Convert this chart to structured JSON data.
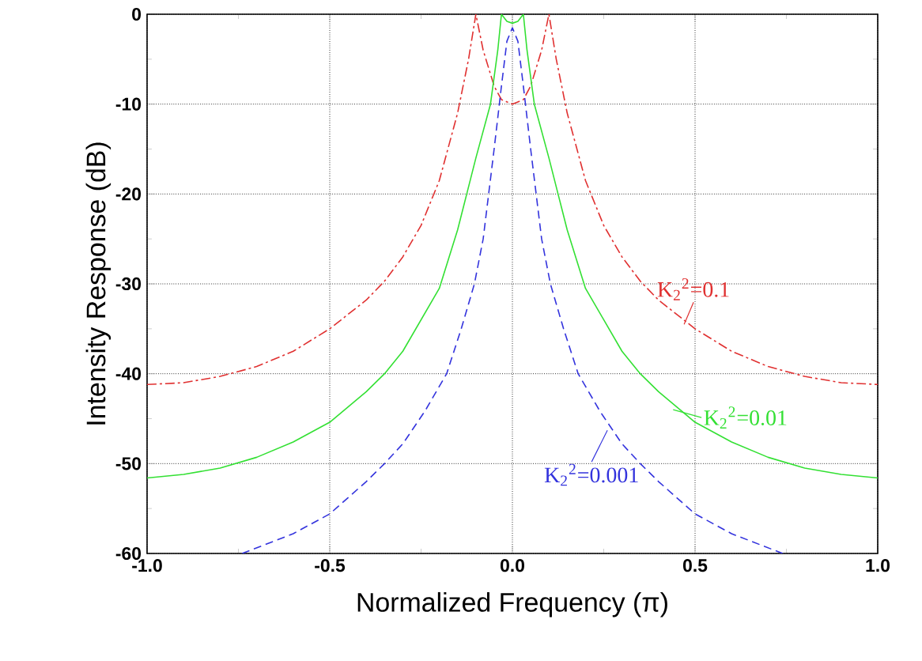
{
  "chart_data": {
    "type": "line",
    "xlabel": "Normalized Frequency (π)",
    "ylabel": "Intensity Response (dB)",
    "xlim": [
      -1.0,
      1.0
    ],
    "xticks": [
      {
        "value": -1.0,
        "label": "-1.0"
      },
      {
        "value": -0.5,
        "label": "-0.5"
      },
      {
        "value": 0.0,
        "label": "0.0"
      },
      {
        "value": 0.5,
        "label": "0.5"
      },
      {
        "value": 1.0,
        "label": "1.0"
      }
    ],
    "ylim": [
      -60,
      0
    ],
    "yticks": [
      -60,
      -50,
      -40,
      -30,
      -20,
      -10,
      0
    ],
    "grid": true,
    "series": [
      {
        "color": "#e03030",
        "line_style": "dashdot",
        "x": [
          -1,
          -0.9,
          -0.8,
          -0.7,
          -0.6,
          -0.5,
          -0.4,
          -0.35,
          -0.3,
          -0.25,
          -0.2,
          -0.15,
          -0.12,
          -0.1,
          -0.08,
          -0.05,
          -0.03,
          0,
          0.03,
          0.05,
          0.08,
          0.1,
          0.12,
          0.15,
          0.2,
          0.25,
          0.3,
          0.35,
          0.4,
          0.5,
          0.6,
          0.7,
          0.8,
          0.9,
          1
        ],
        "values": [
          -41.2,
          -41,
          -40.3,
          -39.2,
          -37.5,
          -35,
          -31.8,
          -29.7,
          -27,
          -23.5,
          -18.5,
          -11,
          -5,
          0,
          -4,
          -8,
          -9.5,
          -10,
          -9.5,
          -8,
          -4,
          0,
          -5,
          -11,
          -18.5,
          -23.5,
          -27,
          -29.7,
          -31.8,
          -35,
          -37.5,
          -39.2,
          -40.3,
          -41,
          -41.2
        ]
      },
      {
        "color": "#33e033",
        "line_style": "solid",
        "x": [
          -1,
          -0.9,
          -0.8,
          -0.7,
          -0.6,
          -0.5,
          -0.4,
          -0.35,
          -0.3,
          -0.25,
          -0.2,
          -0.15,
          -0.125,
          -0.1,
          -0.06,
          -0.04,
          -0.03,
          -0.015,
          0,
          0.015,
          0.03,
          0.04,
          0.06,
          0.1,
          0.125,
          0.15,
          0.2,
          0.25,
          0.3,
          0.35,
          0.4,
          0.5,
          0.6,
          0.7,
          0.8,
          0.9,
          1
        ],
        "values": [
          -51.6,
          -51.2,
          -50.5,
          -49.3,
          -47.6,
          -45.4,
          -42,
          -40,
          -37.5,
          -34,
          -30.5,
          -24,
          -20,
          -16,
          -10,
          -4,
          0,
          -0.8,
          -1,
          -0.8,
          0,
          -4,
          -10,
          -16,
          -20,
          -24,
          -30.5,
          -34,
          -37.5,
          -40,
          -42,
          -45.4,
          -47.6,
          -49.3,
          -50.5,
          -51.2,
          -51.6
        ]
      },
      {
        "color": "#3333dd",
        "line_style": "dashed",
        "x": [
          -0.74,
          -0.6,
          -0.5,
          -0.4,
          -0.35,
          -0.3,
          -0.24,
          -0.18,
          -0.14,
          -0.104,
          -0.08,
          -0.065,
          -0.05,
          -0.03,
          -0.015,
          0,
          0.015,
          0.03,
          0.05,
          0.065,
          0.08,
          0.104,
          0.14,
          0.18,
          0.24,
          0.3,
          0.35,
          0.4,
          0.5,
          0.6,
          0.74
        ],
        "values": [
          -60,
          -57.8,
          -55.6,
          -52,
          -50,
          -47.8,
          -44.2,
          -40,
          -35,
          -30,
          -25,
          -20,
          -15,
          -8,
          -3,
          -1.5,
          -3,
          -8,
          -15,
          -20,
          -25,
          -30,
          -35,
          -40,
          -44.2,
          -47.8,
          -50,
          -52,
          -55.6,
          -57.8,
          -60
        ]
      }
    ],
    "annotations": [
      {
        "text": "K$_{2}$$^{2}$=0.1",
        "x": 0.47,
        "y": -34.5
      },
      {
        "text": "K$_{2}$$^{2}$=0.01",
        "x": 0.44,
        "y": -44
      },
      {
        "text": "K$_{2}$$^{2}$=0.001",
        "x": 0.26,
        "y": -46.3
      }
    ]
  }
}
